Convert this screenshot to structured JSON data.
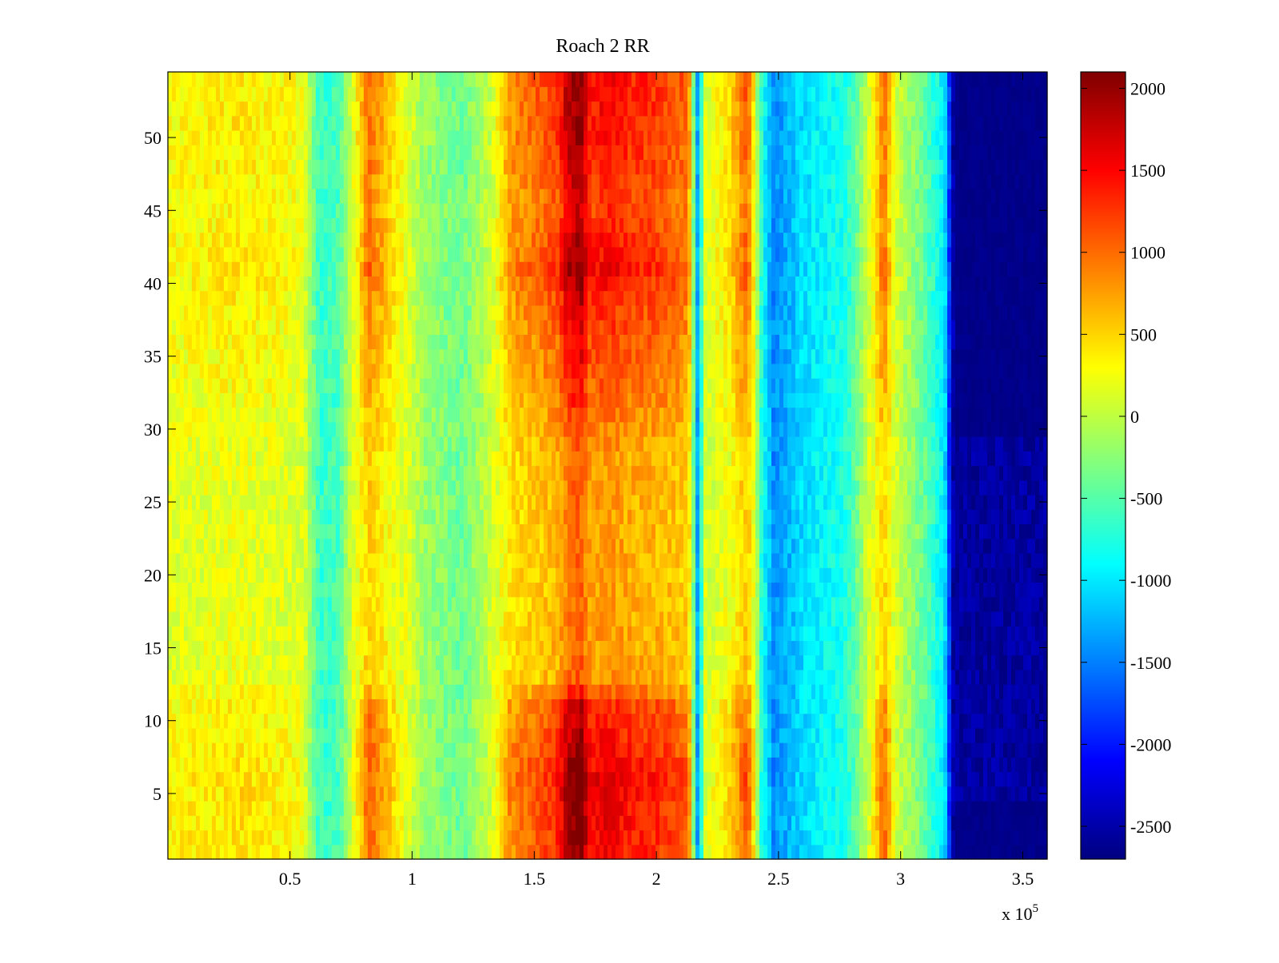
{
  "chart_data": {
    "type": "heatmap",
    "title": "Roach 2 RR",
    "xlabel": "",
    "ylabel": "",
    "colormap": "jet",
    "xlim": [
      0,
      3.6
    ],
    "ylim": [
      0.5,
      54.5
    ],
    "x_exponent_label": "x 10",
    "x_exponent_power": "5",
    "x_ticks": [
      {
        "value": 0.5,
        "label": "0.5"
      },
      {
        "value": 1,
        "label": "1"
      },
      {
        "value": 1.5,
        "label": "1.5"
      },
      {
        "value": 2,
        "label": "2"
      },
      {
        "value": 2.5,
        "label": "2.5"
      },
      {
        "value": 3,
        "label": "3"
      },
      {
        "value": 3.5,
        "label": "3.5"
      }
    ],
    "y_ticks": [
      {
        "value": 5,
        "label": "5"
      },
      {
        "value": 10,
        "label": "10"
      },
      {
        "value": 15,
        "label": "15"
      },
      {
        "value": 20,
        "label": "20"
      },
      {
        "value": 25,
        "label": "25"
      },
      {
        "value": 30,
        "label": "30"
      },
      {
        "value": 35,
        "label": "35"
      },
      {
        "value": 40,
        "label": "40"
      },
      {
        "value": 45,
        "label": "45"
      },
      {
        "value": 50,
        "label": "50"
      }
    ],
    "colorbar": {
      "min": -2700,
      "max": 2100,
      "ticks": [
        {
          "value": 2000,
          "label": "2000"
        },
        {
          "value": 1500,
          "label": "1500"
        },
        {
          "value": 1000,
          "label": "1000"
        },
        {
          "value": 500,
          "label": "500"
        },
        {
          "value": 0,
          "label": "0"
        },
        {
          "value": -500,
          "label": "-500"
        },
        {
          "value": -1000,
          "label": "-1000"
        },
        {
          "value": -1500,
          "label": "-1500"
        },
        {
          "value": -2000,
          "label": "-2000"
        },
        {
          "value": -2500,
          "label": "-2500"
        }
      ]
    },
    "rows": 54,
    "column_profile": [
      {
        "x": 0.0,
        "base": 300
      },
      {
        "x": 0.3,
        "base": 400
      },
      {
        "x": 0.55,
        "base": 250
      },
      {
        "x": 0.62,
        "base": -650
      },
      {
        "x": 0.7,
        "base": -550
      },
      {
        "x": 0.78,
        "base": 400
      },
      {
        "x": 0.82,
        "base": 1000
      },
      {
        "x": 0.88,
        "base": 700
      },
      {
        "x": 0.95,
        "base": 300
      },
      {
        "x": 1.05,
        "base": -150
      },
      {
        "x": 1.2,
        "base": -400
      },
      {
        "x": 1.33,
        "base": 100
      },
      {
        "x": 1.4,
        "base": 800
      },
      {
        "x": 1.5,
        "base": 1000
      },
      {
        "x": 1.6,
        "base": 1250
      },
      {
        "x": 1.63,
        "base": 1700
      },
      {
        "x": 1.69,
        "base": 2050
      },
      {
        "x": 1.73,
        "base": 1350
      },
      {
        "x": 1.8,
        "base": 1500
      },
      {
        "x": 1.9,
        "base": 1300
      },
      {
        "x": 2.0,
        "base": 1250
      },
      {
        "x": 2.13,
        "base": 1000
      },
      {
        "x": 2.17,
        "base": -1400
      },
      {
        "x": 2.2,
        "base": 150
      },
      {
        "x": 2.3,
        "base": 450
      },
      {
        "x": 2.37,
        "base": 1100
      },
      {
        "x": 2.4,
        "base": 300
      },
      {
        "x": 2.43,
        "base": -700
      },
      {
        "x": 2.48,
        "base": -1450
      },
      {
        "x": 2.6,
        "base": -1050
      },
      {
        "x": 2.78,
        "base": -750
      },
      {
        "x": 2.88,
        "base": 200
      },
      {
        "x": 2.93,
        "base": 1000
      },
      {
        "x": 2.98,
        "base": 100
      },
      {
        "x": 3.1,
        "base": -450
      },
      {
        "x": 3.18,
        "base": -1000
      },
      {
        "x": 3.22,
        "base": -2700
      },
      {
        "x": 3.6,
        "base": -2700
      }
    ],
    "row_modulation": [
      {
        "y": 1,
        "factor": 1.05
      },
      {
        "y": 6,
        "factor": 1.2
      },
      {
        "y": 11,
        "factor": 0.85
      },
      {
        "y": 13,
        "factor": 0.3
      },
      {
        "y": 20,
        "factor": 0.25
      },
      {
        "y": 28,
        "factor": 0.28
      },
      {
        "y": 33,
        "factor": 0.6
      },
      {
        "y": 38,
        "factor": 0.8
      },
      {
        "y": 41,
        "factor": 1.1
      },
      {
        "y": 45,
        "factor": 0.8
      },
      {
        "y": 50,
        "factor": 1.0
      },
      {
        "y": 54,
        "factor": 1.05
      }
    ],
    "noise_amplitude": 380
  }
}
